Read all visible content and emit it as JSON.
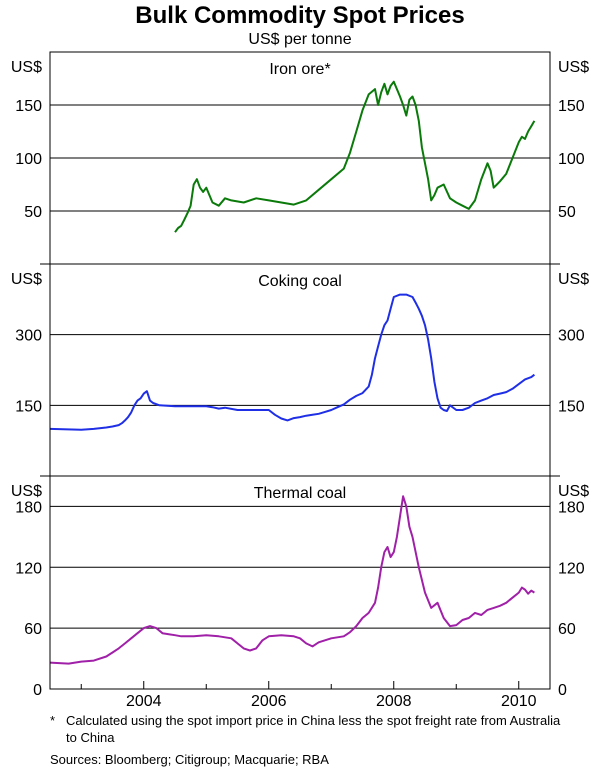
{
  "title": "Bulk Commodity Spot Prices",
  "subtitle": "US$ per tonne",
  "footnote_marker": "*",
  "footnote": "Calculated using the spot import price in China less the spot freight rate from Australia to China",
  "sources": "Sources: Bloomberg; Citigroup; Macquarie; RBA",
  "chart_data": {
    "type": "line",
    "x_axis": {
      "range": [
        2002.5,
        2010.5
      ],
      "ticks": [
        2004,
        2006,
        2008,
        2010
      ],
      "tick_labels": [
        "2004",
        "2006",
        "2008",
        "2010"
      ]
    },
    "panels": [
      {
        "title": "Iron ore*",
        "unit": "US$",
        "color": "#0a7a0a",
        "ylim": [
          0,
          200
        ],
        "yticks": [
          50,
          100,
          150
        ],
        "ytick_labels": [
          "50",
          "100",
          "150"
        ],
        "series": {
          "name": "Iron ore",
          "x": [
            2004.5,
            2004.55,
            2004.6,
            2004.65,
            2004.7,
            2004.75,
            2004.8,
            2004.85,
            2004.9,
            2004.95,
            2005.0,
            2005.1,
            2005.2,
            2005.3,
            2005.4,
            2005.6,
            2005.8,
            2006.0,
            2006.2,
            2006.4,
            2006.6,
            2006.8,
            2007.0,
            2007.2,
            2007.3,
            2007.4,
            2007.5,
            2007.6,
            2007.7,
            2007.75,
            2007.8,
            2007.85,
            2007.9,
            2007.95,
            2008.0,
            2008.05,
            2008.1,
            2008.15,
            2008.2,
            2008.25,
            2008.3,
            2008.35,
            2008.4,
            2008.45,
            2008.5,
            2008.55,
            2008.6,
            2008.65,
            2008.7,
            2008.8,
            2008.9,
            2009.0,
            2009.1,
            2009.2,
            2009.3,
            2009.4,
            2009.5,
            2009.55,
            2009.6,
            2009.65,
            2009.7,
            2009.8,
            2009.9,
            2010.0,
            2010.05,
            2010.1,
            2010.15,
            2010.2,
            2010.25
          ],
          "y": [
            30,
            34,
            36,
            42,
            48,
            55,
            75,
            80,
            72,
            68,
            72,
            58,
            55,
            62,
            60,
            58,
            62,
            60,
            58,
            56,
            60,
            70,
            80,
            90,
            105,
            125,
            145,
            160,
            165,
            150,
            162,
            170,
            160,
            168,
            172,
            165,
            158,
            150,
            140,
            155,
            158,
            150,
            135,
            110,
            95,
            80,
            60,
            65,
            72,
            75,
            62,
            58,
            55,
            52,
            60,
            80,
            95,
            88,
            72,
            75,
            78,
            85,
            100,
            115,
            120,
            118,
            125,
            130,
            135
          ]
        }
      },
      {
        "title": "Coking coal",
        "unit": "US$",
        "color": "#1f2fe6",
        "ylim": [
          0,
          450
        ],
        "yticks": [
          150,
          300
        ],
        "ytick_labels": [
          "150",
          "300"
        ],
        "series": {
          "name": "Coking coal",
          "x": [
            2002.5,
            2003.0,
            2003.2,
            2003.4,
            2003.5,
            2003.6,
            2003.65,
            2003.7,
            2003.75,
            2003.8,
            2003.85,
            2003.9,
            2003.95,
            2004.0,
            2004.05,
            2004.1,
            2004.15,
            2004.25,
            2004.5,
            2005.0,
            2005.1,
            2005.2,
            2005.3,
            2005.5,
            2005.7,
            2006.0,
            2006.1,
            2006.2,
            2006.3,
            2006.4,
            2006.5,
            2006.6,
            2006.7,
            2006.8,
            2006.9,
            2007.0,
            2007.1,
            2007.2,
            2007.3,
            2007.4,
            2007.5,
            2007.6,
            2007.65,
            2007.7,
            2007.75,
            2007.8,
            2007.85,
            2007.9,
            2007.95,
            2008.0,
            2008.1,
            2008.2,
            2008.3,
            2008.35,
            2008.4,
            2008.45,
            2008.5,
            2008.55,
            2008.6,
            2008.65,
            2008.7,
            2008.75,
            2008.8,
            2008.85,
            2008.9,
            2009.0,
            2009.1,
            2009.2,
            2009.3,
            2009.4,
            2009.5,
            2009.6,
            2009.7,
            2009.8,
            2009.9,
            2010.0,
            2010.1,
            2010.2,
            2010.25
          ],
          "y": [
            100,
            98,
            100,
            103,
            105,
            108,
            112,
            118,
            125,
            135,
            150,
            160,
            165,
            175,
            180,
            160,
            155,
            150,
            148,
            148,
            146,
            143,
            145,
            140,
            140,
            140,
            130,
            122,
            118,
            123,
            125,
            128,
            130,
            132,
            136,
            140,
            146,
            152,
            162,
            170,
            176,
            190,
            215,
            250,
            275,
            300,
            320,
            330,
            355,
            380,
            385,
            385,
            380,
            368,
            355,
            340,
            320,
            290,
            250,
            200,
            165,
            145,
            140,
            138,
            150,
            140,
            140,
            145,
            155,
            160,
            165,
            172,
            175,
            178,
            185,
            195,
            205,
            210,
            215
          ]
        }
      },
      {
        "title": "Thermal coal",
        "unit": "US$",
        "color": "#a020a8",
        "ylim": [
          0,
          210
        ],
        "yticks": [
          0,
          60,
          120,
          180
        ],
        "ytick_labels": [
          "0",
          "60",
          "120",
          "180"
        ],
        "series": {
          "name": "Thermal coal",
          "x": [
            2002.5,
            2002.8,
            2003.0,
            2003.2,
            2003.4,
            2003.5,
            2003.6,
            2003.7,
            2003.8,
            2003.9,
            2004.0,
            2004.1,
            2004.2,
            2004.3,
            2004.4,
            2004.5,
            2004.6,
            2004.8,
            2005.0,
            2005.2,
            2005.4,
            2005.5,
            2005.6,
            2005.7,
            2005.8,
            2005.9,
            2006.0,
            2006.2,
            2006.4,
            2006.5,
            2006.6,
            2006.7,
            2006.8,
            2007.0,
            2007.2,
            2007.3,
            2007.4,
            2007.5,
            2007.6,
            2007.7,
            2007.75,
            2007.8,
            2007.85,
            2007.9,
            2007.95,
            2008.0,
            2008.05,
            2008.1,
            2008.15,
            2008.2,
            2008.25,
            2008.3,
            2008.4,
            2008.5,
            2008.6,
            2008.7,
            2008.8,
            2008.9,
            2009.0,
            2009.1,
            2009.2,
            2009.3,
            2009.4,
            2009.5,
            2009.6,
            2009.7,
            2009.8,
            2009.9,
            2010.0,
            2010.05,
            2010.1,
            2010.15,
            2010.2,
            2010.25
          ],
          "y": [
            26,
            25,
            27,
            28,
            32,
            36,
            40,
            45,
            50,
            55,
            60,
            62,
            60,
            55,
            54,
            53,
            52,
            52,
            53,
            52,
            50,
            45,
            40,
            38,
            40,
            48,
            52,
            53,
            52,
            50,
            45,
            42,
            46,
            50,
            52,
            56,
            62,
            70,
            75,
            85,
            100,
            120,
            135,
            140,
            130,
            135,
            150,
            170,
            190,
            180,
            160,
            150,
            120,
            95,
            80,
            85,
            70,
            62,
            63,
            68,
            70,
            75,
            73,
            78,
            80,
            82,
            85,
            90,
            95,
            100,
            98,
            94,
            97,
            95
          ]
        }
      }
    ]
  }
}
